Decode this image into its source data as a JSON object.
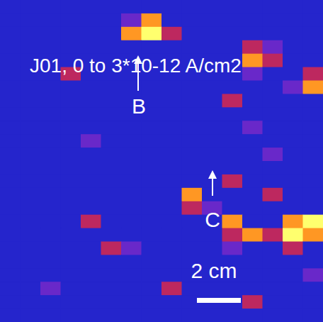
{
  "chart_data": {
    "type": "heatmap",
    "title": "J01, 0 to 3*10-12 A/cm2",
    "color_range": [
      0,
      3e-12
    ],
    "tick_labels": false,
    "annotations": [
      "B",
      "C"
    ],
    "scale_bar": "2 cm",
    "cells": [
      [
        3e-13,
        3e-13,
        3e-13,
        3e-13,
        3e-13,
        3e-13,
        3e-13,
        3e-13,
        3e-13,
        3e-13,
        3e-13,
        3e-13,
        3e-13,
        3e-13,
        3e-13,
        3e-13
      ],
      [
        3e-13,
        3e-13,
        3e-13,
        3e-13,
        3e-13,
        3e-13,
        1e-12,
        2.5e-12,
        3e-13,
        3e-13,
        3e-13,
        3e-13,
        3e-13,
        3e-13,
        3e-13,
        3e-13
      ],
      [
        3e-13,
        3e-13,
        3e-13,
        3e-13,
        3e-13,
        3e-13,
        2.5e-12,
        3e-12,
        1.5e-12,
        3e-13,
        3e-13,
        3e-13,
        3e-13,
        3e-13,
        3e-13,
        3e-13
      ],
      [
        3e-13,
        3e-13,
        3e-13,
        3e-13,
        3e-13,
        3e-13,
        3e-13,
        3e-13,
        3e-13,
        3e-13,
        3e-13,
        3e-13,
        1.5e-12,
        1e-12,
        3e-13,
        3e-13
      ],
      [
        3e-13,
        3e-13,
        3e-13,
        3e-13,
        3e-13,
        3e-13,
        3e-13,
        3e-13,
        3e-13,
        3e-13,
        3e-13,
        3e-13,
        2.5e-12,
        1.5e-12,
        3e-13,
        3e-13
      ],
      [
        3e-13,
        3e-13,
        3e-13,
        1.5e-12,
        3e-13,
        3e-13,
        3e-13,
        3e-13,
        3e-13,
        3e-13,
        3e-13,
        3e-13,
        1e-12,
        3e-13,
        3e-13,
        1.5e-12
      ],
      [
        3e-13,
        3e-13,
        3e-13,
        3e-13,
        3e-13,
        3e-13,
        3e-13,
        3e-13,
        3e-13,
        3e-13,
        3e-13,
        3e-13,
        3e-13,
        3e-13,
        1e-12,
        2.5e-12
      ],
      [
        3e-13,
        3e-13,
        3e-13,
        3e-13,
        3e-13,
        3e-13,
        3e-13,
        3e-13,
        3e-13,
        3e-13,
        3e-13,
        1.5e-12,
        3e-13,
        3e-13,
        3e-13,
        3e-13
      ],
      [
        3e-13,
        3e-13,
        3e-13,
        3e-13,
        3e-13,
        3e-13,
        3e-13,
        3e-13,
        3e-13,
        3e-13,
        3e-13,
        3e-13,
        3e-13,
        3e-13,
        3e-13,
        3e-13
      ],
      [
        3e-13,
        3e-13,
        3e-13,
        3e-13,
        3e-13,
        3e-13,
        3e-13,
        3e-13,
        3e-13,
        3e-13,
        3e-13,
        3e-13,
        1e-12,
        3e-13,
        3e-13,
        3e-13
      ],
      [
        3e-13,
        3e-13,
        3e-13,
        3e-13,
        1e-12,
        3e-13,
        3e-13,
        3e-13,
        3e-13,
        3e-13,
        3e-13,
        3e-13,
        3e-13,
        3e-13,
        3e-13,
        3e-13
      ],
      [
        3e-13,
        3e-13,
        3e-13,
        3e-13,
        3e-13,
        3e-13,
        3e-13,
        3e-13,
        3e-13,
        3e-13,
        3e-13,
        3e-13,
        3e-13,
        1e-12,
        3e-13,
        3e-13
      ],
      [
        3e-13,
        3e-13,
        3e-13,
        3e-13,
        3e-13,
        3e-13,
        3e-13,
        3e-13,
        3e-13,
        3e-13,
        3e-13,
        3e-13,
        3e-13,
        3e-13,
        3e-13,
        3e-13
      ],
      [
        3e-13,
        3e-13,
        3e-13,
        3e-13,
        3e-13,
        3e-13,
        3e-13,
        3e-13,
        3e-13,
        3e-13,
        3e-13,
        1.5e-12,
        3e-13,
        3e-13,
        3e-13,
        3e-13
      ],
      [
        3e-13,
        3e-13,
        3e-13,
        3e-13,
        3e-13,
        3e-13,
        3e-13,
        3e-13,
        3e-13,
        2.5e-12,
        3e-13,
        3e-13,
        3e-13,
        1.5e-12,
        3e-13,
        3e-13
      ],
      [
        3e-13,
        3e-13,
        3e-13,
        3e-13,
        3e-13,
        3e-13,
        3e-13,
        3e-13,
        3e-13,
        1.5e-12,
        1e-12,
        3e-13,
        3e-13,
        3e-13,
        3e-13,
        3e-13
      ],
      [
        3e-13,
        3e-13,
        3e-13,
        3e-13,
        1.5e-12,
        3e-13,
        3e-13,
        3e-13,
        3e-13,
        3e-13,
        3e-13,
        2.5e-12,
        3e-13,
        3e-13,
        2.5e-12,
        3e-12
      ],
      [
        3e-13,
        3e-13,
        3e-13,
        3e-13,
        3e-13,
        3e-13,
        3e-13,
        3e-13,
        3e-13,
        3e-13,
        3e-13,
        1.5e-12,
        2.5e-12,
        1.5e-12,
        3e-12,
        2.5e-12
      ],
      [
        3e-13,
        3e-13,
        3e-13,
        3e-13,
        3e-13,
        1.5e-12,
        1e-12,
        3e-13,
        3e-13,
        3e-13,
        3e-13,
        1e-12,
        3e-13,
        3e-13,
        1.5e-12,
        3e-13
      ],
      [
        3e-13,
        3e-13,
        3e-13,
        3e-13,
        3e-13,
        3e-13,
        3e-13,
        3e-13,
        3e-13,
        3e-13,
        3e-13,
        3e-13,
        3e-13,
        3e-13,
        3e-13,
        3e-13
      ],
      [
        3e-13,
        3e-13,
        3e-13,
        3e-13,
        3e-13,
        3e-13,
        3e-13,
        3e-13,
        3e-13,
        3e-13,
        3e-13,
        3e-13,
        3e-13,
        3e-13,
        3e-13,
        1e-12
      ],
      [
        3e-13,
        3e-13,
        1e-12,
        3e-13,
        3e-13,
        3e-13,
        3e-13,
        3e-13,
        1.5e-12,
        3e-13,
        3e-13,
        3e-13,
        3e-13,
        3e-13,
        3e-13,
        3e-13
      ],
      [
        3e-13,
        3e-13,
        3e-13,
        3e-13,
        3e-13,
        3e-13,
        3e-13,
        3e-13,
        3e-13,
        3e-13,
        3e-13,
        3e-13,
        1.5e-12,
        3e-13,
        3e-13,
        3e-13
      ],
      [
        3e-13,
        3e-13,
        3e-13,
        3e-13,
        3e-13,
        3e-13,
        3e-13,
        3e-13,
        3e-13,
        3e-13,
        3e-13,
        3e-13,
        3e-13,
        3e-13,
        3e-13,
        3e-13
      ]
    ]
  }
}
